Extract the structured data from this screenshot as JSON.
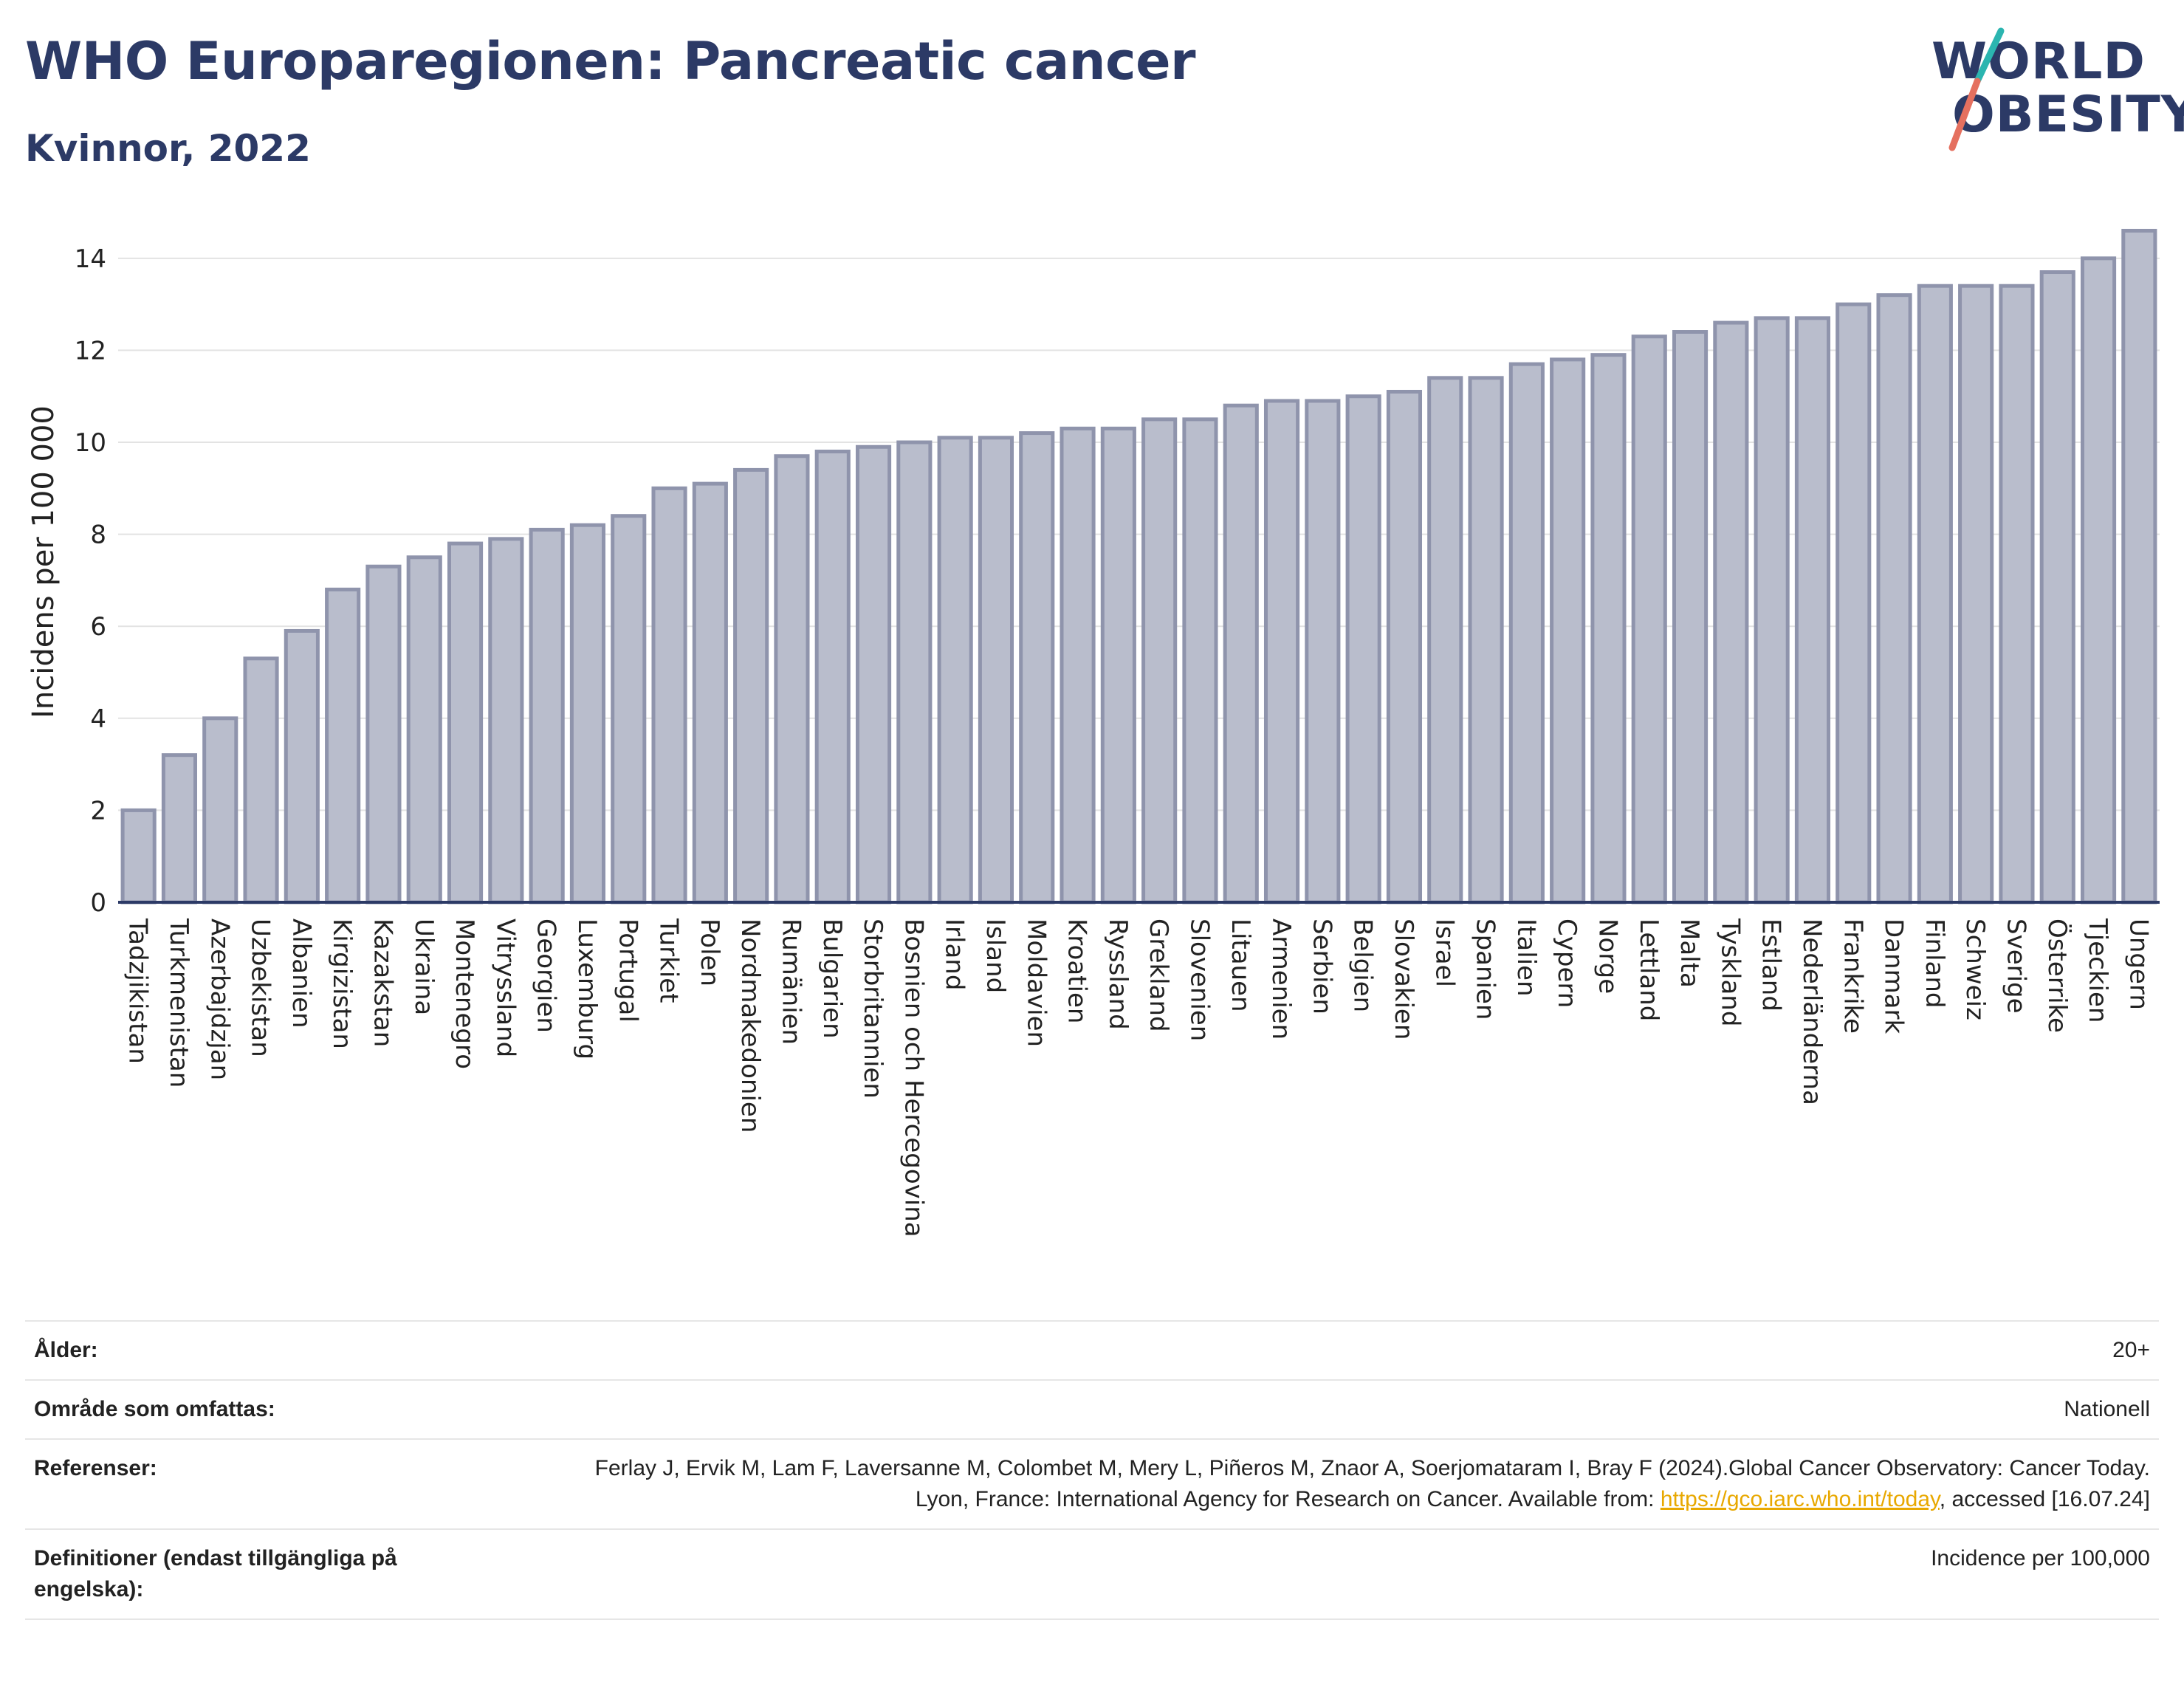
{
  "header": {
    "title": "WHO Europaregionen: Pancreatic cancer",
    "subtitle": "Kvinnor, 2022"
  },
  "logo": {
    "line1": "WORLD",
    "line2": "OBESITY",
    "accent_colors": [
      "#2bb5b0",
      "#e5705f"
    ]
  },
  "chart_data": {
    "type": "bar",
    "ylabel": "Incidens per 100 000",
    "xlabel": "",
    "ylim": [
      0,
      14.8
    ],
    "yticks": [
      0,
      2,
      4,
      6,
      8,
      10,
      12,
      14
    ],
    "grid": true,
    "bar_fill": "#b9bdcc",
    "bar_stroke": "#8f94ac",
    "categories": [
      "Tadzjikistan",
      "Turkmenistan",
      "Azerbajdzjan",
      "Uzbekistan",
      "Albanien",
      "Kirgizistan",
      "Kazakstan",
      "Ukraina",
      "Montenegro",
      "Vitryssland",
      "Georgien",
      "Luxemburg",
      "Portugal",
      "Turkiet",
      "Polen",
      "Nordmakedonien",
      "Rumänien",
      "Bulgarien",
      "Storbritannien",
      "Bosnien och Hercegovina",
      "Irland",
      "Island",
      "Moldavien",
      "Kroatien",
      "Ryssland",
      "Grekland",
      "Slovenien",
      "Litauen",
      "Armenien",
      "Serbien",
      "Belgien",
      "Slovakien",
      "Israel",
      "Spanien",
      "Italien",
      "Cypern",
      "Norge",
      "Lettland",
      "Malta",
      "Tyskland",
      "Estland",
      "Nederländerna",
      "Frankrike",
      "Danmark",
      "Finland",
      "Schweiz",
      "Sverige",
      "Österrike",
      "Tjeckien",
      "Ungern"
    ],
    "values": [
      2.0,
      3.2,
      4.0,
      5.3,
      5.9,
      6.8,
      7.3,
      7.5,
      7.8,
      7.9,
      8.1,
      8.2,
      8.4,
      9.0,
      9.1,
      9.4,
      9.7,
      9.8,
      9.9,
      10.0,
      10.1,
      10.1,
      10.2,
      10.3,
      10.3,
      10.5,
      10.5,
      10.8,
      10.9,
      10.9,
      11.0,
      11.1,
      11.4,
      11.4,
      11.7,
      11.8,
      11.9,
      12.3,
      12.4,
      12.6,
      12.7,
      12.7,
      13.0,
      13.2,
      13.4,
      13.4,
      13.4,
      13.7,
      14.0,
      14.6
    ]
  },
  "meta": {
    "age_label": "Ålder:",
    "age_value": "20+",
    "area_label": "Område som omfattas:",
    "area_value": "Nationell",
    "ref_label": "Referenser:",
    "ref_text_1": "Ferlay J, Ervik M, Lam F, Laversanne M, Colombet M, Mery L, Piñeros M, Znaor A, Soerjomataram I, Bray F (2024).Global Cancer Observatory: Cancer Today. Lyon, France: International Agency for Research on Cancer. Available from: ",
    "ref_link": "https://gco.iarc.who.int/today",
    "ref_text_2": ", accessed [16.07.24]",
    "def_label": "Definitioner (endast tillgängliga på engelska):",
    "def_value": "Incidence per 100,000"
  }
}
